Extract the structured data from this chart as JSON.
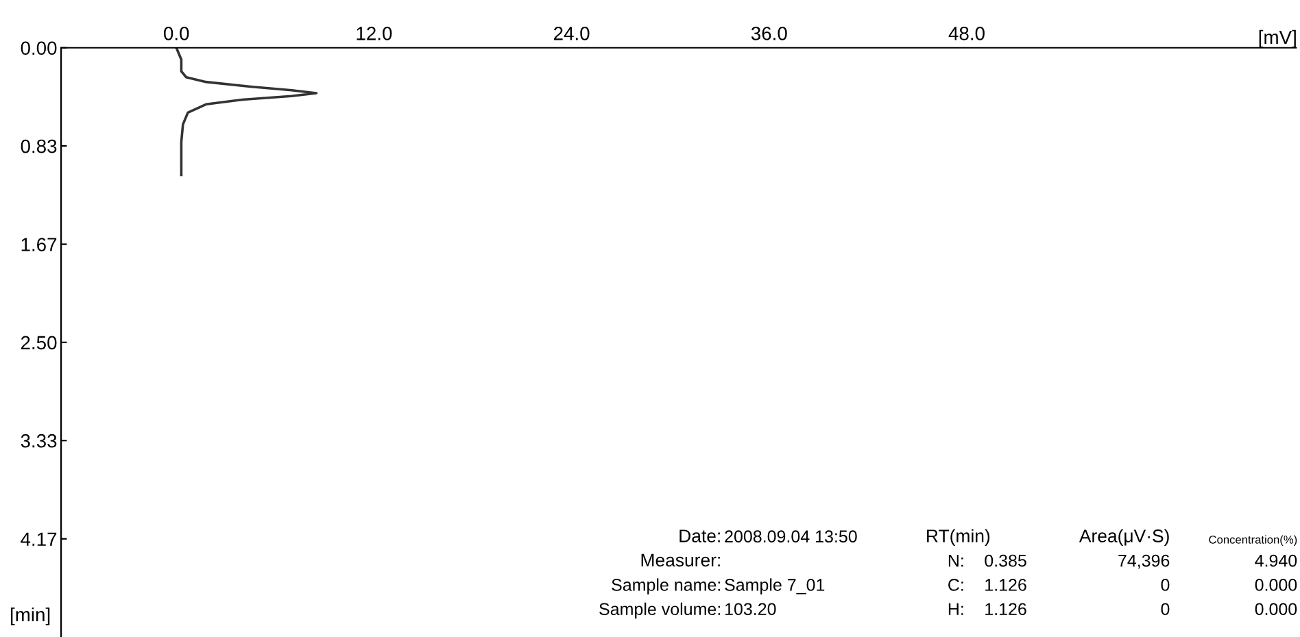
{
  "chart_data": {
    "type": "line",
    "xlabel": "[mV]",
    "ylabel": "[min]",
    "series": [
      {
        "color": "#333333",
        "x": [
          0.0,
          0.1,
          0.2,
          0.25,
          0.29,
          0.33,
          0.36,
          0.385,
          0.41,
          0.44,
          0.48,
          0.55,
          0.65,
          0.8,
          1.08
        ],
        "values": [
          0.0,
          0.3,
          0.3,
          0.6,
          1.8,
          4.5,
          7.0,
          8.5,
          7.0,
          4.0,
          1.8,
          0.7,
          0.4,
          0.3,
          0.3
        ]
      }
    ],
    "orientation": "horizontal",
    "xlim": [
      -7,
      68
    ],
    "xticks": [
      {
        "value": 0,
        "label": "0.0"
      },
      {
        "value": 12,
        "label": "12.0"
      },
      {
        "value": 24,
        "label": "24.0"
      },
      {
        "value": 36,
        "label": "36.0"
      },
      {
        "value": 48,
        "label": "48.0"
      }
    ],
    "ylim": [
      5.0,
      0.0
    ],
    "yticks": [
      {
        "value": 0,
        "label": "0.00"
      },
      {
        "value": 0.833,
        "label": "0.83"
      },
      {
        "value": 1.667,
        "label": "1.67"
      },
      {
        "value": 2.5,
        "label": "2.50"
      },
      {
        "value": 3.333,
        "label": "3.33"
      },
      {
        "value": 4.167,
        "label": "4.17"
      }
    ],
    "grid": false,
    "legend": false,
    "marker": "none",
    "line_style": "solid",
    "annotations": [
      "Date:",
      "2008.09.04 13:50",
      "Measurer:",
      "Sample name:",
      "Sample 7_01",
      "Sample volume:",
      "103.20",
      "RT(min)",
      "Area(μV·S)",
      "Concentration(%)",
      "N:",
      "0.385",
      "74,396",
      "4.940",
      "C:",
      "1.126",
      "0",
      "0.000",
      "H:",
      "1.126",
      "0",
      "0.000"
    ]
  }
}
